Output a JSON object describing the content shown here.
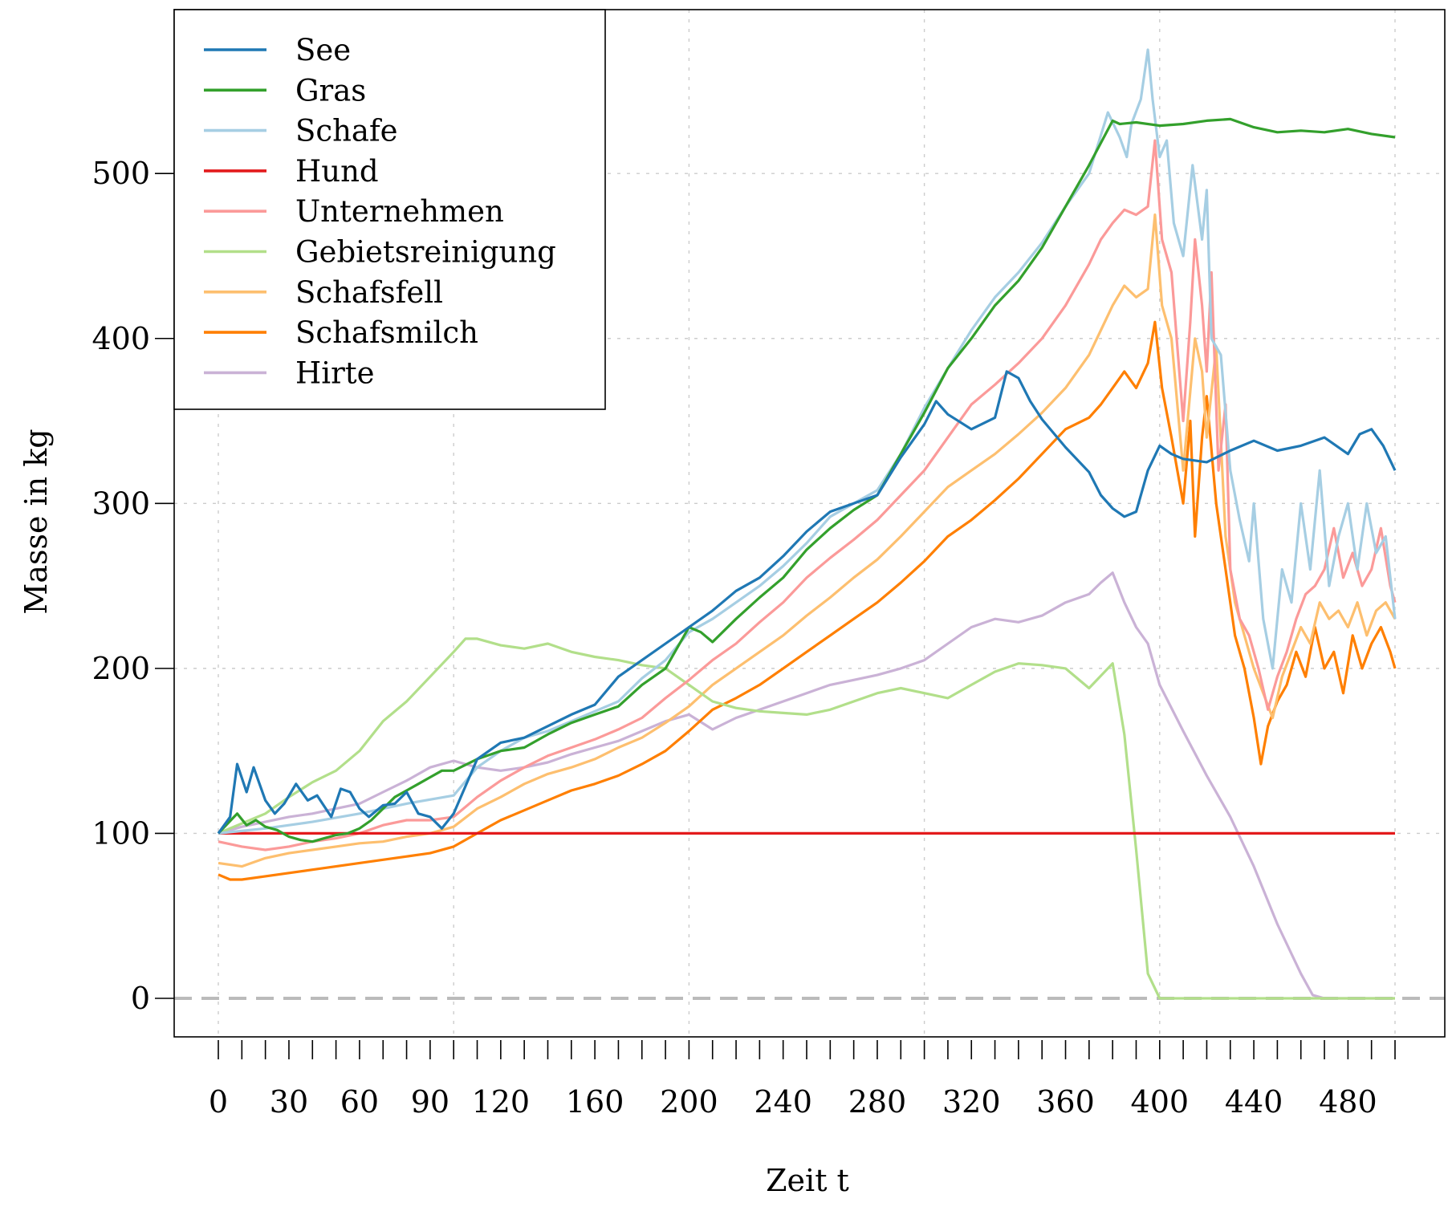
{
  "chart_data": {
    "type": "line",
    "xlabel": "Zeit t",
    "ylabel": "Masse in kg",
    "xlim": [
      0,
      500
    ],
    "ylim": [
      0,
      600
    ],
    "x_ticks": [
      0,
      30,
      60,
      90,
      120,
      160,
      200,
      240,
      280,
      320,
      360,
      400,
      440,
      480
    ],
    "y_ticks": [
      0,
      100,
      200,
      300,
      400,
      500
    ],
    "grid": true,
    "legend": "top-left",
    "reference_line": 0,
    "series": [
      {
        "name": "See",
        "color": "#1f78b4",
        "x": [
          0,
          5,
          8,
          12,
          15,
          20,
          24,
          28,
          33,
          38,
          42,
          48,
          52,
          56,
          60,
          64,
          70,
          75,
          80,
          85,
          90,
          95,
          100,
          110,
          120,
          130,
          140,
          150,
          160,
          170,
          180,
          190,
          200,
          210,
          220,
          230,
          240,
          250,
          260,
          270,
          280,
          290,
          300,
          305,
          310,
          320,
          330,
          335,
          340,
          345,
          350,
          360,
          370,
          375,
          380,
          385,
          390,
          395,
          400,
          405,
          410,
          420,
          430,
          440,
          450,
          460,
          470,
          480,
          485,
          490,
          495,
          500
        ],
        "y": [
          100,
          110,
          142,
          125,
          140,
          120,
          112,
          118,
          130,
          120,
          123,
          110,
          127,
          125,
          115,
          110,
          117,
          118,
          125,
          112,
          110,
          103,
          112,
          145,
          155,
          158,
          165,
          172,
          178,
          195,
          205,
          215,
          225,
          235,
          247,
          255,
          268,
          283,
          295,
          300,
          305,
          328,
          348,
          362,
          354,
          345,
          352,
          380,
          376,
          362,
          351,
          334,
          319,
          305,
          297,
          292,
          295,
          320,
          335,
          330,
          327,
          325,
          332,
          338,
          332,
          335,
          340,
          330,
          342,
          345,
          335,
          320
        ]
      },
      {
        "name": "Gras",
        "color": "#33a02c",
        "x": [
          0,
          4,
          8,
          12,
          16,
          20,
          25,
          30,
          35,
          40,
          45,
          50,
          55,
          60,
          65,
          70,
          75,
          80,
          85,
          90,
          95,
          100,
          110,
          120,
          130,
          140,
          150,
          160,
          170,
          180,
          190,
          200,
          205,
          210,
          220,
          230,
          240,
          250,
          260,
          270,
          280,
          290,
          300,
          310,
          320,
          330,
          340,
          350,
          360,
          370,
          380,
          383,
          390,
          400,
          410,
          420,
          430,
          440,
          450,
          460,
          470,
          480,
          490,
          500
        ],
        "y": [
          100,
          106,
          112,
          105,
          108,
          104,
          102,
          98,
          96,
          95,
          97,
          99,
          100,
          103,
          108,
          115,
          122,
          126,
          130,
          134,
          138,
          138,
          145,
          150,
          152,
          160,
          167,
          172,
          177,
          190,
          200,
          225,
          222,
          216,
          230,
          243,
          255,
          272,
          285,
          296,
          305,
          330,
          355,
          382,
          400,
          420,
          435,
          455,
          480,
          505,
          532,
          530,
          531,
          529,
          530,
          532,
          533,
          528,
          525,
          526,
          525,
          527,
          524,
          522
        ]
      },
      {
        "name": "Schafe",
        "color": "#a6cee3",
        "x": [
          0,
          20,
          40,
          60,
          80,
          100,
          110,
          120,
          130,
          140,
          150,
          160,
          170,
          180,
          190,
          200,
          210,
          220,
          230,
          240,
          250,
          260,
          270,
          280,
          290,
          300,
          310,
          320,
          330,
          340,
          350,
          360,
          370,
          378,
          383,
          386,
          388,
          392,
          395,
          397,
          400,
          403,
          406,
          410,
          414,
          418,
          420,
          422,
          426,
          430,
          434,
          438,
          440,
          444,
          448,
          452,
          456,
          460,
          464,
          468,
          472,
          476,
          480,
          484,
          488,
          492,
          496,
          500
        ],
        "y": [
          100,
          103,
          107,
          112,
          118,
          123,
          140,
          150,
          158,
          162,
          168,
          174,
          180,
          194,
          205,
          222,
          230,
          240,
          250,
          262,
          276,
          292,
          300,
          308,
          330,
          358,
          382,
          405,
          425,
          440,
          458,
          480,
          500,
          537,
          522,
          510,
          530,
          545,
          575,
          545,
          510,
          520,
          470,
          450,
          505,
          460,
          490,
          400,
          390,
          320,
          290,
          265,
          300,
          230,
          200,
          260,
          240,
          300,
          260,
          320,
          250,
          280,
          300,
          260,
          300,
          270,
          280,
          230
        ]
      },
      {
        "name": "Hund",
        "color": "#e31a1c",
        "x": [
          0,
          500
        ],
        "y": [
          100,
          100
        ]
      },
      {
        "name": "Unternehmen",
        "color": "#fb9a99",
        "x": [
          0,
          10,
          20,
          30,
          40,
          50,
          60,
          70,
          80,
          90,
          100,
          110,
          120,
          130,
          140,
          150,
          160,
          170,
          180,
          190,
          200,
          210,
          220,
          230,
          240,
          250,
          260,
          270,
          280,
          290,
          300,
          310,
          320,
          330,
          340,
          350,
          360,
          370,
          375,
          380,
          385,
          390,
          395,
          398,
          401,
          405,
          410,
          413,
          415,
          418,
          420,
          422,
          425,
          428,
          430,
          434,
          438,
          442,
          446,
          450,
          454,
          458,
          462,
          466,
          470,
          474,
          478,
          482,
          486,
          490,
          494,
          498,
          500
        ],
        "y": [
          95,
          92,
          90,
          92,
          95,
          97,
          100,
          105,
          108,
          108,
          110,
          122,
          132,
          140,
          147,
          152,
          157,
          163,
          170,
          182,
          193,
          205,
          215,
          228,
          240,
          255,
          267,
          278,
          290,
          305,
          320,
          340,
          360,
          372,
          385,
          400,
          420,
          445,
          460,
          470,
          478,
          475,
          480,
          520,
          460,
          440,
          350,
          410,
          460,
          420,
          380,
          440,
          320,
          360,
          260,
          230,
          220,
          200,
          175,
          195,
          210,
          230,
          245,
          250,
          260,
          285,
          255,
          270,
          250,
          260,
          285,
          250,
          240
        ]
      },
      {
        "name": "Gebietsreinigung",
        "color": "#b2df8a",
        "x": [
          0,
          10,
          20,
          30,
          40,
          50,
          60,
          70,
          80,
          90,
          100,
          105,
          110,
          120,
          130,
          140,
          150,
          160,
          170,
          180,
          190,
          200,
          210,
          220,
          230,
          240,
          250,
          260,
          270,
          280,
          290,
          300,
          310,
          320,
          330,
          340,
          350,
          360,
          370,
          380,
          385,
          390,
          395,
          400,
          410,
          420,
          430,
          440,
          450,
          460,
          470,
          480,
          490,
          500
        ],
        "y": [
          100,
          106,
          112,
          122,
          131,
          138,
          150,
          168,
          180,
          195,
          210,
          218,
          218,
          214,
          212,
          215,
          210,
          207,
          205,
          202,
          200,
          190,
          180,
          176,
          174,
          173,
          172,
          175,
          180,
          185,
          188,
          185,
          182,
          190,
          198,
          203,
          202,
          200,
          188,
          203,
          160,
          90,
          15,
          0,
          0,
          0,
          0,
          0,
          0,
          0,
          0,
          0,
          0,
          0
        ]
      },
      {
        "name": "Schafsfell",
        "color": "#fdbf6f",
        "x": [
          0,
          10,
          20,
          30,
          40,
          50,
          60,
          70,
          80,
          90,
          100,
          110,
          120,
          130,
          140,
          150,
          160,
          170,
          180,
          190,
          200,
          210,
          220,
          230,
          240,
          250,
          260,
          270,
          280,
          290,
          300,
          310,
          320,
          330,
          340,
          350,
          360,
          370,
          375,
          380,
          385,
          390,
          395,
          398,
          401,
          405,
          410,
          415,
          418,
          420,
          424,
          428,
          432,
          436,
          440,
          444,
          448,
          452,
          456,
          460,
          464,
          468,
          472,
          476,
          480,
          484,
          488,
          492,
          496,
          500
        ],
        "y": [
          82,
          80,
          85,
          88,
          90,
          92,
          94,
          95,
          98,
          100,
          104,
          115,
          122,
          130,
          136,
          140,
          145,
          152,
          158,
          167,
          177,
          190,
          200,
          210,
          220,
          232,
          243,
          255,
          266,
          280,
          295,
          310,
          320,
          330,
          342,
          355,
          370,
          390,
          405,
          420,
          432,
          425,
          430,
          475,
          420,
          400,
          320,
          400,
          380,
          340,
          395,
          280,
          240,
          220,
          200,
          185,
          170,
          195,
          210,
          225,
          215,
          240,
          230,
          235,
          225,
          240,
          220,
          235,
          240,
          230
        ]
      },
      {
        "name": "Schafsmilch",
        "color": "#ff7f00",
        "x": [
          0,
          5,
          10,
          20,
          30,
          40,
          50,
          60,
          70,
          80,
          90,
          100,
          110,
          120,
          130,
          140,
          150,
          160,
          170,
          180,
          190,
          200,
          210,
          220,
          230,
          240,
          250,
          260,
          270,
          280,
          290,
          300,
          310,
          320,
          330,
          340,
          350,
          360,
          370,
          375,
          380,
          385,
          390,
          395,
          398,
          401,
          405,
          410,
          413,
          415,
          418,
          420,
          424,
          428,
          432,
          436,
          440,
          443,
          446,
          450,
          454,
          458,
          462,
          466,
          470,
          474,
          478,
          482,
          486,
          490,
          494,
          498,
          500
        ],
        "y": [
          75,
          72,
          72,
          74,
          76,
          78,
          80,
          82,
          84,
          86,
          88,
          92,
          100,
          108,
          114,
          120,
          126,
          130,
          135,
          142,
          150,
          162,
          175,
          182,
          190,
          200,
          210,
          220,
          230,
          240,
          252,
          265,
          280,
          290,
          302,
          315,
          330,
          345,
          352,
          360,
          370,
          380,
          370,
          385,
          410,
          370,
          340,
          300,
          350,
          280,
          340,
          365,
          300,
          260,
          220,
          200,
          170,
          142,
          165,
          180,
          190,
          210,
          195,
          225,
          200,
          210,
          185,
          220,
          200,
          215,
          225,
          210,
          200
        ]
      },
      {
        "name": "Hirte",
        "color": "#cab2d6",
        "x": [
          0,
          10,
          20,
          30,
          40,
          50,
          60,
          70,
          80,
          90,
          100,
          110,
          120,
          130,
          140,
          150,
          160,
          170,
          180,
          190,
          200,
          210,
          220,
          230,
          240,
          250,
          260,
          270,
          280,
          290,
          300,
          310,
          320,
          330,
          340,
          350,
          360,
          370,
          375,
          380,
          385,
          390,
          395,
          400,
          410,
          420,
          430,
          440,
          450,
          460,
          465,
          470,
          480,
          490,
          500
        ],
        "y": [
          100,
          104,
          107,
          110,
          112,
          115,
          118,
          125,
          132,
          140,
          144,
          140,
          138,
          140,
          143,
          148,
          152,
          156,
          162,
          168,
          172,
          163,
          170,
          175,
          180,
          185,
          190,
          193,
          196,
          200,
          205,
          215,
          225,
          230,
          228,
          232,
          240,
          245,
          252,
          258,
          240,
          225,
          215,
          190,
          162,
          135,
          110,
          80,
          45,
          15,
          2,
          0,
          0,
          0,
          0
        ]
      }
    ]
  }
}
